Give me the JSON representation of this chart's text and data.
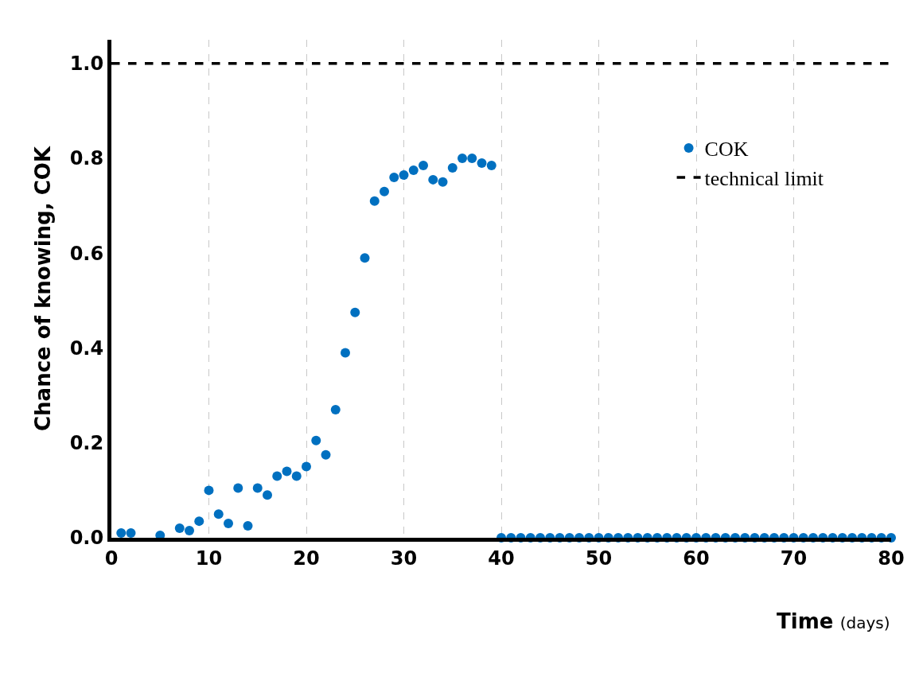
{
  "chart_data": {
    "type": "scatter",
    "xlabel": "Time (days)",
    "ylabel": "Chance of knowing, COK",
    "xlim": [
      0,
      80
    ],
    "xticks": [
      0,
      10,
      20,
      30,
      40,
      50,
      60,
      70,
      80
    ],
    "ylim": [
      0,
      1.05
    ],
    "yticks": [
      {
        "value": 0,
        "label": "0.0"
      },
      {
        "value": 0.2,
        "label": "0.2"
      },
      {
        "value": 0.4,
        "label": "0.4"
      },
      {
        "value": 0.6,
        "label": "0.6"
      },
      {
        "value": 0.8,
        "label": "0.8"
      },
      {
        "value": 1.0,
        "label": "1.0"
      }
    ],
    "grid": "x",
    "legend": "right",
    "marker": "circle",
    "series": [
      {
        "name": "COK",
        "color": "#0070c0",
        "x": [
          1,
          2,
          5,
          7,
          8,
          9,
          10,
          11,
          12,
          13,
          14,
          15,
          16,
          17,
          18,
          19,
          20,
          21,
          22,
          23,
          24,
          25,
          26,
          27,
          28,
          29,
          30,
          31,
          32,
          33,
          34,
          35,
          36,
          37,
          38,
          39,
          40,
          41,
          42,
          43,
          44,
          45,
          46,
          47,
          48,
          49,
          50,
          51,
          52,
          53,
          54,
          55,
          56,
          57,
          58,
          59,
          60,
          61,
          62,
          63,
          64,
          65,
          66,
          67,
          68,
          69,
          70,
          71,
          72,
          73,
          74,
          75,
          76,
          77,
          78,
          79,
          80
        ],
        "values": [
          0.01,
          0.01,
          0.005,
          0.02,
          0.015,
          0.035,
          0.1,
          0.05,
          0.03,
          0.105,
          0.025,
          0.105,
          0.09,
          0.13,
          0.14,
          0.13,
          0.15,
          0.205,
          0.175,
          0.27,
          0.39,
          0.475,
          0.59,
          0.71,
          0.73,
          0.76,
          0.765,
          0.775,
          0.785,
          0.755,
          0.75,
          0.78,
          0.8,
          0.8,
          0.79,
          0.785,
          0,
          0,
          0,
          0,
          0,
          0,
          0,
          0,
          0,
          0,
          0,
          0,
          0,
          0,
          0,
          0,
          0,
          0,
          0,
          0,
          0,
          0,
          0,
          0,
          0,
          0,
          0,
          0,
          0,
          0,
          0,
          0,
          0,
          0,
          0,
          0,
          0,
          0,
          0,
          0,
          0
        ]
      },
      {
        "name": "technical limit",
        "color": "#000000",
        "type": "line",
        "marker": "none",
        "line_style": "dashed",
        "x": [
          0,
          80
        ],
        "values": [
          1.0,
          1.0
        ]
      }
    ]
  }
}
